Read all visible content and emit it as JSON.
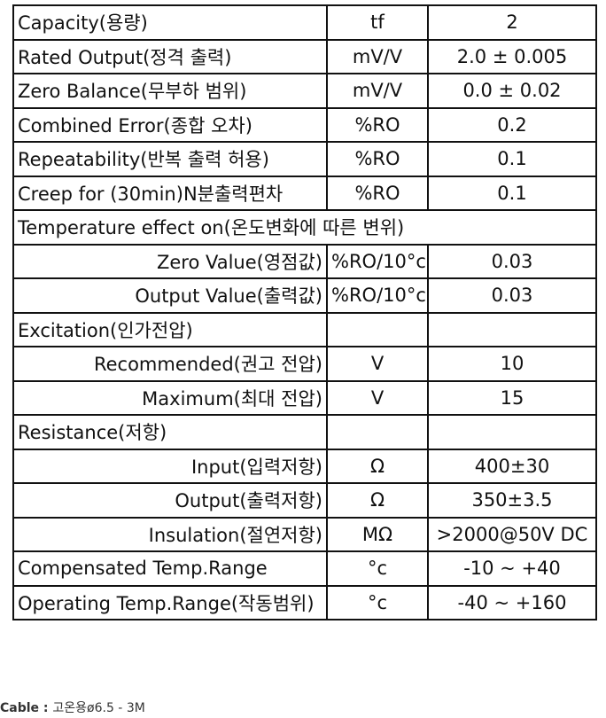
{
  "rows": [
    {
      "label": "Capacity(용량)",
      "unit": "tf",
      "value": "2"
    },
    {
      "label": "Rated Output(정격 출력)",
      "unit": "mV/V",
      "value": "2.0 ± 0.005"
    },
    {
      "label": "Zero Balance(무부하 범위)",
      "unit": "mV/V",
      "value": "0.0 ± 0.02"
    },
    {
      "label": "Combined Error(종합 오차)",
      "unit": "%RO",
      "value": "0.2"
    },
    {
      "label": "Repeatability(반복 출력 허용)",
      "unit": "%RO",
      "value": "0.1"
    },
    {
      "label": "Creep for (30min)N분출력편차",
      "unit": "%RO",
      "value": "0.1"
    },
    {
      "label": "Temperature effect on(온도변화에 따른 변위)"
    },
    {
      "label": "Zero Value(영점값)",
      "unit": "%RO/10°c",
      "value": "0.03"
    },
    {
      "label": "Output Value(출력값)",
      "unit": "%RO/10°c",
      "value": "0.03"
    },
    {
      "label": "Excitation(인가전압)",
      "unit": "",
      "value": ""
    },
    {
      "label": "Recommended(권고 전압)",
      "unit": "V",
      "value": "10"
    },
    {
      "label": "Maximum(최대 전압)",
      "unit": "V",
      "value": "15"
    },
    {
      "label": "Resistance(저항)",
      "unit": "",
      "value": ""
    },
    {
      "label": "Input(입력저항)",
      "unit": "Ω",
      "value": "400±30"
    },
    {
      "label": "Output(출력저항)",
      "unit": "Ω",
      "value": "350±3.5"
    },
    {
      "label": "Insulation(절연저항)",
      "unit": "MΩ",
      "value": ">2000@50V DC"
    },
    {
      "label": "Compensated Temp.Range",
      "unit": "°c",
      "value": "-10 ~ +40"
    },
    {
      "label": "Operating Temp.Range(작동범위)",
      "unit": "°c",
      "value": "-40 ~ +160"
    }
  ],
  "caption": {
    "label": "Cable :",
    "value": "고온용ø6.5 - 3M"
  }
}
